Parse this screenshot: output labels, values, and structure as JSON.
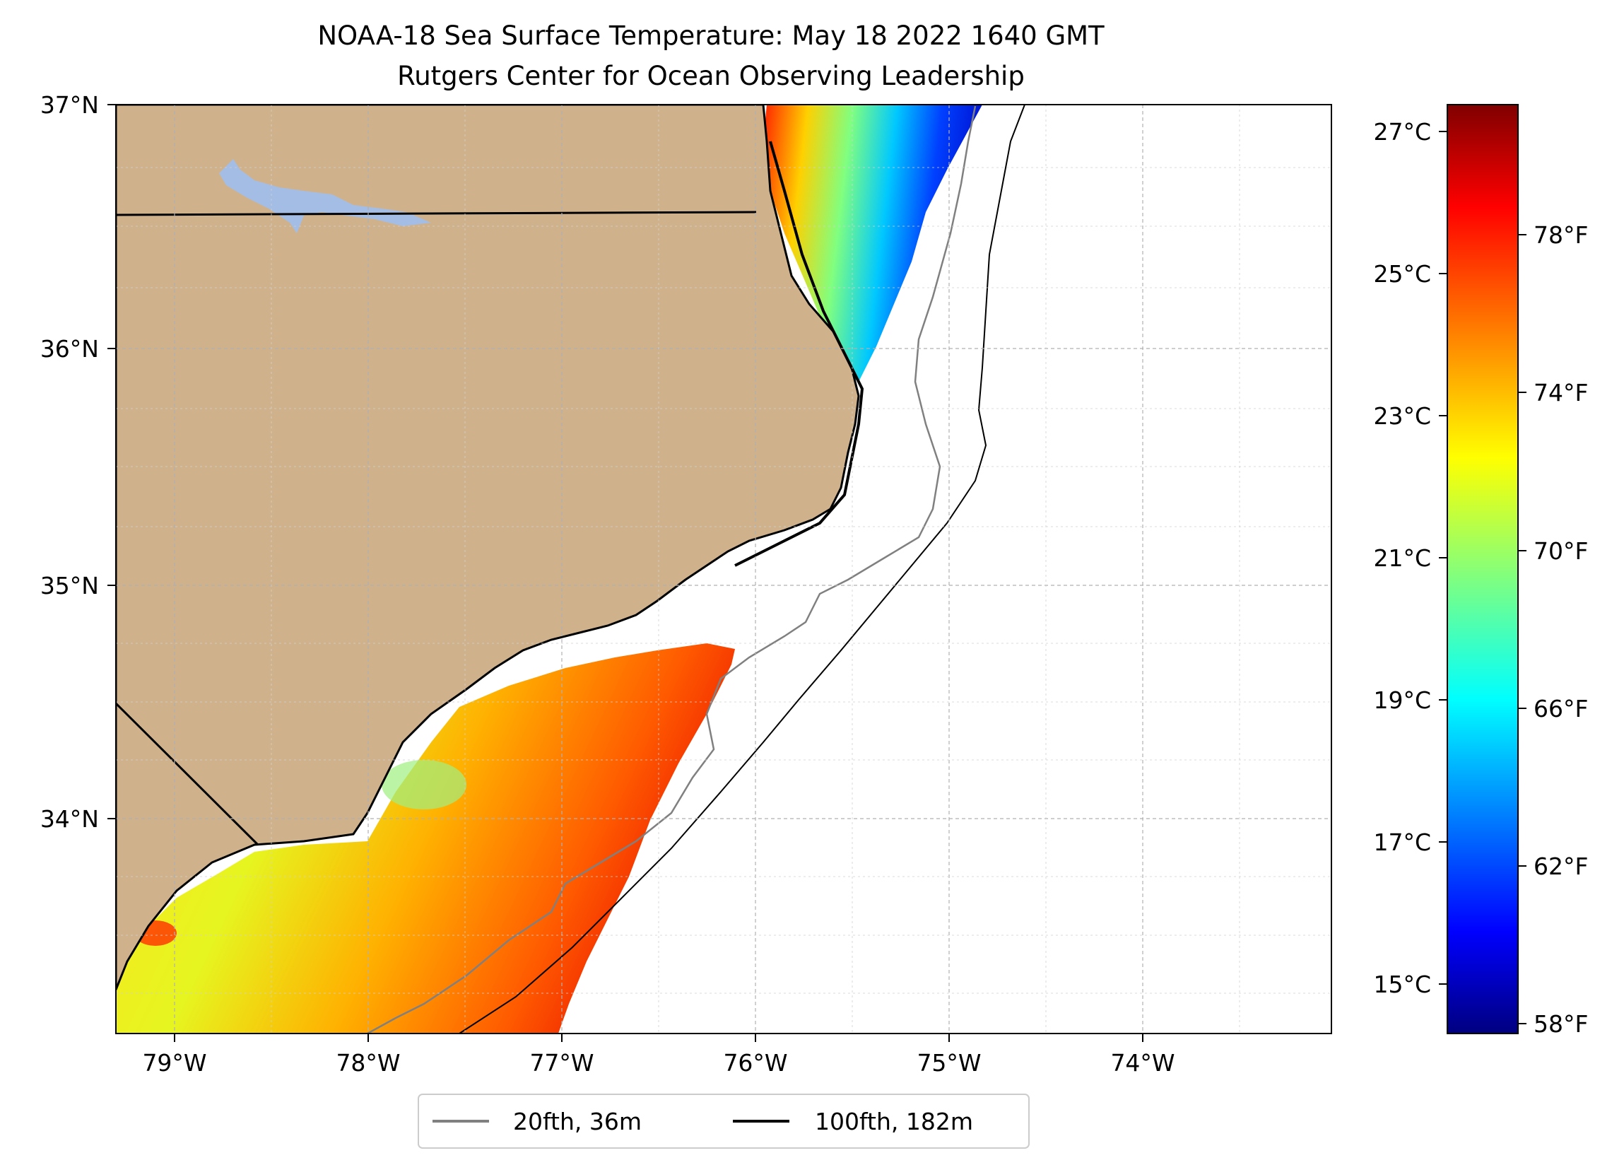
{
  "title": {
    "line1": "NOAA-18 Sea Surface Temperature: May 18 2022 1640 GMT",
    "line2": "Rutgers Center for Ocean Observing Leadership"
  },
  "colors": {
    "land": "#cfb28c",
    "lake": "#a4bde4",
    "coastline": "#000000",
    "isobath_20fth": "#808080",
    "isobath_100fth": "#000000",
    "grid": "#b0b0b0"
  },
  "map": {
    "lon_ticks": [
      "79°W",
      "78°W",
      "77°W",
      "76°W",
      "75°W",
      "74°W"
    ],
    "lat_ticks": [
      "37°N",
      "36°N",
      "35°N",
      "34°N"
    ],
    "extent": {
      "lon": [
        -79.3,
        -73.05
      ],
      "lat": [
        33.1,
        37.0
      ]
    },
    "sst_colormap": "jet",
    "sst_range_c": [
      14.5,
      27.7
    ]
  },
  "colorbar": {
    "celsius_ticks": [
      "27°C",
      "25°C",
      "23°C",
      "21°C",
      "19°C",
      "17°C",
      "15°C"
    ],
    "fahrenheit_ticks": [
      "78°F",
      "74°F",
      "70°F",
      "66°F",
      "62°F",
      "58°F"
    ]
  },
  "legend": {
    "entries": [
      {
        "label": "20fth, 36m",
        "color": "#808080"
      },
      {
        "label": "100fth, 182m",
        "color": "#000000"
      }
    ]
  }
}
